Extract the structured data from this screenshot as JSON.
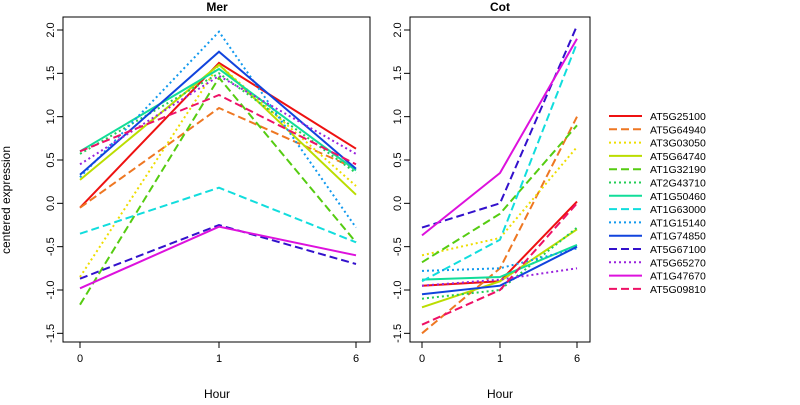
{
  "chart_data": [
    {
      "type": "line",
      "title": "Mer",
      "xlabel": "Hour",
      "ylabel": "centered expression",
      "x": [
        "0",
        "1",
        "6"
      ],
      "ylim": [
        -1.6,
        2.15
      ],
      "yticks": [
        -1.5,
        -1.0,
        -0.5,
        0.0,
        0.5,
        1.0,
        1.5,
        2.0
      ],
      "ytick_labels": [
        "-1.5",
        "-1.0",
        "-0.5",
        "0.0",
        "0.5",
        "1.0",
        "1.5",
        "2.0"
      ],
      "grid": false,
      "legend": "right",
      "series": [
        {
          "name": "AT5G25100",
          "color": "#ee1111",
          "dash": "solid",
          "values": [
            -0.05,
            1.62,
            0.63
          ]
        },
        {
          "name": "AT5G64940",
          "color": "#ee7722",
          "dash": "dashed",
          "values": [
            -0.05,
            1.1,
            0.4
          ]
        },
        {
          "name": "AT3G03050",
          "color": "#eedd00",
          "dash": "dotted",
          "values": [
            -0.85,
            1.6,
            0.2
          ]
        },
        {
          "name": "AT5G64740",
          "color": "#bbdd00",
          "dash": "solid",
          "values": [
            0.27,
            1.6,
            0.1
          ]
        },
        {
          "name": "AT1G32190",
          "color": "#55cc11",
          "dash": "dashed",
          "values": [
            -1.17,
            1.45,
            -0.45
          ]
        },
        {
          "name": "AT2G43710",
          "color": "#22cc55",
          "dash": "dotted",
          "values": [
            0.57,
            1.5,
            0.35
          ]
        },
        {
          "name": "AT1G50460",
          "color": "#11dd99",
          "dash": "solid",
          "values": [
            0.6,
            1.55,
            0.38
          ]
        },
        {
          "name": "AT1G63000",
          "color": "#11dddd",
          "dash": "dashed",
          "values": [
            -0.35,
            0.18,
            -0.45
          ]
        },
        {
          "name": "AT1G15140",
          "color": "#1199ee",
          "dash": "dotted",
          "values": [
            0.3,
            1.98,
            -0.28
          ]
        },
        {
          "name": "AT1G74850",
          "color": "#1144dd",
          "dash": "solid",
          "values": [
            0.33,
            1.75,
            0.4
          ]
        },
        {
          "name": "AT5G67100",
          "color": "#3311cc",
          "dash": "dashed",
          "values": [
            -0.87,
            -0.25,
            -0.7
          ]
        },
        {
          "name": "AT5G65270",
          "color": "#9922dd",
          "dash": "dotted",
          "values": [
            0.45,
            1.47,
            0.57
          ]
        },
        {
          "name": "AT1G47670",
          "color": "#dd11dd",
          "dash": "solid",
          "values": [
            -0.98,
            -0.27,
            -0.6
          ]
        },
        {
          "name": "AT5G09810",
          "color": "#ee1166",
          "dash": "dashed",
          "values": [
            0.6,
            1.25,
            0.45
          ]
        }
      ]
    },
    {
      "type": "line",
      "title": "Cot",
      "xlabel": "Hour",
      "ylabel": "",
      "x": [
        "0",
        "1",
        "6"
      ],
      "ylim": [
        -1.6,
        2.15
      ],
      "yticks": [
        -1.5,
        -1.0,
        -0.5,
        0.0,
        0.5,
        1.0,
        1.5,
        2.0
      ],
      "ytick_labels": [
        "-1.5",
        "-1.0",
        "-0.5",
        "0.0",
        "0.5",
        "1.0",
        "1.5",
        "2.0"
      ],
      "grid": false,
      "legend": "right",
      "series": [
        {
          "name": "AT5G25100",
          "color": "#ee1111",
          "dash": "solid",
          "values": [
            -0.95,
            -0.9,
            0.02
          ]
        },
        {
          "name": "AT5G64940",
          "color": "#ee7722",
          "dash": "dashed",
          "values": [
            -1.5,
            -0.75,
            1.0
          ]
        },
        {
          "name": "AT3G03050",
          "color": "#eedd00",
          "dash": "dotted",
          "values": [
            -0.6,
            -0.4,
            0.65
          ]
        },
        {
          "name": "AT5G64740",
          "color": "#bbdd00",
          "dash": "solid",
          "values": [
            -1.2,
            -0.9,
            -0.3
          ]
        },
        {
          "name": "AT1G32190",
          "color": "#55cc11",
          "dash": "dashed",
          "values": [
            -0.68,
            -0.12,
            0.9
          ]
        },
        {
          "name": "AT2G43710",
          "color": "#22cc55",
          "dash": "dotted",
          "values": [
            -1.1,
            -1.0,
            -0.28
          ]
        },
        {
          "name": "AT1G50460",
          "color": "#11dd99",
          "dash": "solid",
          "values": [
            -0.88,
            -0.85,
            -0.48
          ]
        },
        {
          "name": "AT1G63000",
          "color": "#11dddd",
          "dash": "dashed",
          "values": [
            -0.9,
            -0.42,
            1.85
          ]
        },
        {
          "name": "AT1G15140",
          "color": "#1199ee",
          "dash": "dotted",
          "values": [
            -0.78,
            -0.75,
            -0.52
          ]
        },
        {
          "name": "AT1G74850",
          "color": "#1144dd",
          "dash": "solid",
          "values": [
            -1.05,
            -0.95,
            -0.5
          ]
        },
        {
          "name": "AT5G67100",
          "color": "#3311cc",
          "dash": "dashed",
          "values": [
            -0.28,
            0.0,
            2.05
          ]
        },
        {
          "name": "AT5G65270",
          "color": "#9922dd",
          "dash": "dotted",
          "values": [
            -0.95,
            -0.88,
            -0.75
          ]
        },
        {
          "name": "AT1G47670",
          "color": "#dd11dd",
          "dash": "solid",
          "values": [
            -0.37,
            0.35,
            1.9
          ]
        },
        {
          "name": "AT5G09810",
          "color": "#ee1166",
          "dash": "dashed",
          "values": [
            -1.4,
            -1.0,
            0.0
          ]
        }
      ]
    }
  ]
}
